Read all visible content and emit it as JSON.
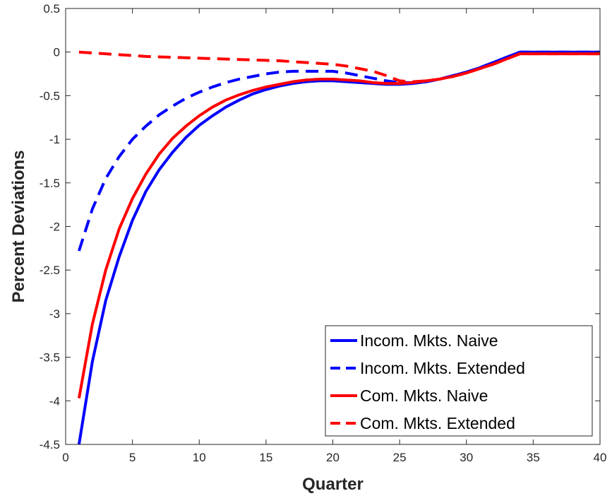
{
  "chart_data": {
    "type": "line",
    "xlabel": "Quarter",
    "ylabel": "Percent Deviations",
    "xlim": [
      0,
      40
    ],
    "ylim": [
      -4.5,
      0.5
    ],
    "xticks": [
      0,
      5,
      10,
      15,
      20,
      25,
      30,
      35,
      40
    ],
    "yticks": [
      0.5,
      0,
      -0.5,
      -1,
      -1.5,
      -2,
      -2.5,
      -3,
      -3.5,
      -4,
      -4.5
    ],
    "xtick_labels": [
      "0",
      "5",
      "10",
      "15",
      "20",
      "25",
      "30",
      "35",
      "40"
    ],
    "ytick_labels": [
      "0.5",
      "0",
      "-0.5",
      "-1",
      "-1.5",
      "-2",
      "-2.5",
      "-3",
      "-3.5",
      "-4",
      "-4.5"
    ],
    "grid": false,
    "legend_position": "bottom-right",
    "series": [
      {
        "name": "Incom. Mkts. Naive",
        "color": "#0000ff",
        "style": "solid",
        "x": [
          1,
          2,
          3,
          4,
          5,
          6,
          7,
          8,
          9,
          10,
          11,
          12,
          13,
          14,
          15,
          16,
          17,
          18,
          19,
          20,
          21,
          22,
          23,
          24,
          25,
          26,
          27,
          28,
          29,
          30,
          31,
          32,
          33,
          34,
          35,
          36,
          37,
          38,
          39,
          40
        ],
        "y": [
          -4.5,
          -3.55,
          -2.85,
          -2.35,
          -1.93,
          -1.6,
          -1.35,
          -1.15,
          -0.98,
          -0.84,
          -0.73,
          -0.63,
          -0.55,
          -0.48,
          -0.43,
          -0.39,
          -0.36,
          -0.34,
          -0.33,
          -0.33,
          -0.34,
          -0.35,
          -0.36,
          -0.37,
          -0.37,
          -0.36,
          -0.34,
          -0.31,
          -0.27,
          -0.23,
          -0.18,
          -0.12,
          -0.06,
          0.0,
          0.0,
          0.0,
          0.0,
          0.0,
          0.0,
          0.0
        ]
      },
      {
        "name": "Incom. Mkts. Extended",
        "color": "#0000ff",
        "style": "dashed",
        "x": [
          1,
          2,
          3,
          4,
          5,
          6,
          7,
          8,
          9,
          10,
          11,
          12,
          13,
          14,
          15,
          16,
          17,
          18,
          19,
          20,
          21,
          22,
          23,
          24,
          25,
          26,
          27,
          28,
          29,
          30,
          31,
          32,
          33,
          34,
          35,
          36,
          37,
          38,
          39,
          40
        ],
        "y": [
          -2.28,
          -1.8,
          -1.45,
          -1.2,
          -1.0,
          -0.85,
          -0.72,
          -0.62,
          -0.53,
          -0.46,
          -0.4,
          -0.35,
          -0.31,
          -0.28,
          -0.25,
          -0.23,
          -0.22,
          -0.22,
          -0.22,
          -0.22,
          -0.24,
          -0.27,
          -0.3,
          -0.33,
          -0.35,
          -0.35,
          -0.34,
          -0.31,
          -0.27,
          -0.23,
          -0.18,
          -0.12,
          -0.06,
          0.0,
          0.0,
          0.0,
          0.0,
          0.0,
          0.0,
          0.0
        ]
      },
      {
        "name": "Com. Mkts. Naive",
        "color": "#ff0000",
        "style": "solid",
        "x": [
          1,
          2,
          3,
          4,
          5,
          6,
          7,
          8,
          9,
          10,
          11,
          12,
          13,
          14,
          15,
          16,
          17,
          18,
          19,
          20,
          21,
          22,
          23,
          24,
          25,
          26,
          27,
          28,
          29,
          30,
          31,
          32,
          33,
          34,
          35,
          36,
          37,
          38,
          39,
          40
        ],
        "y": [
          -3.97,
          -3.12,
          -2.5,
          -2.03,
          -1.68,
          -1.4,
          -1.17,
          -0.99,
          -0.85,
          -0.73,
          -0.63,
          -0.55,
          -0.49,
          -0.44,
          -0.4,
          -0.37,
          -0.34,
          -0.32,
          -0.31,
          -0.31,
          -0.32,
          -0.33,
          -0.35,
          -0.36,
          -0.36,
          -0.35,
          -0.33,
          -0.31,
          -0.28,
          -0.24,
          -0.19,
          -0.14,
          -0.08,
          -0.02,
          -0.02,
          -0.02,
          -0.02,
          -0.02,
          -0.02,
          -0.02
        ]
      },
      {
        "name": "Com. Mkts. Extended",
        "color": "#ff0000",
        "style": "dashed",
        "x": [
          1,
          2,
          3,
          4,
          5,
          6,
          7,
          8,
          9,
          10,
          11,
          12,
          13,
          14,
          15,
          16,
          17,
          18,
          19,
          20,
          21,
          22,
          23,
          24,
          25,
          26,
          27,
          28,
          29,
          30,
          31,
          32,
          33,
          34,
          35,
          36,
          37,
          38,
          39,
          40
        ],
        "y": [
          0.0,
          -0.01,
          -0.02,
          -0.03,
          -0.04,
          -0.05,
          -0.055,
          -0.06,
          -0.065,
          -0.07,
          -0.075,
          -0.08,
          -0.085,
          -0.09,
          -0.095,
          -0.1,
          -0.11,
          -0.12,
          -0.13,
          -0.14,
          -0.16,
          -0.19,
          -0.22,
          -0.27,
          -0.33,
          -0.34,
          -0.33,
          -0.31,
          -0.28,
          -0.24,
          -0.19,
          -0.14,
          -0.08,
          -0.02,
          -0.02,
          -0.02,
          -0.02,
          -0.02,
          -0.02,
          -0.02
        ]
      }
    ]
  }
}
